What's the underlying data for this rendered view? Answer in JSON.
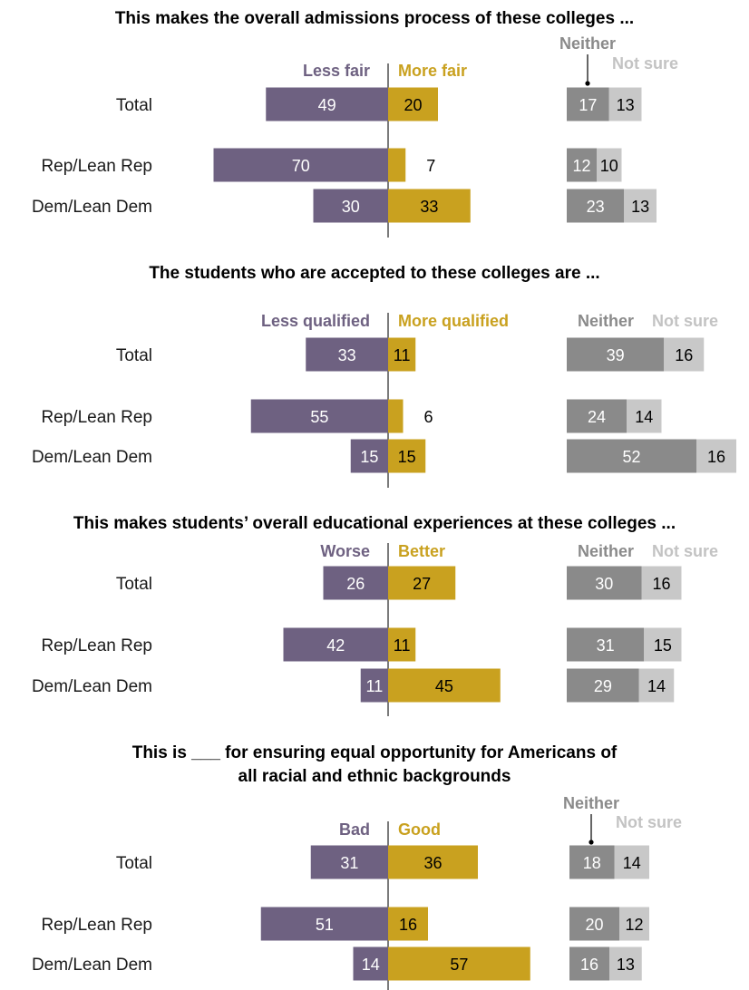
{
  "colors": {
    "left": "#6e6181",
    "right": "#c9a11f",
    "neither": "#8a8a8a",
    "not_sure": "#c8c8c8",
    "neither_head": "#8a8a8a",
    "not_sure_head": "#c3c3c3"
  },
  "chart_data": [
    {
      "type": "bar",
      "title": "This makes the overall admissions process of these colleges ...",
      "categories": [
        "Total",
        "Rep/Lean Rep",
        "Dem/Lean Dem"
      ],
      "left_label": "Less fair",
      "right_label": "More fair",
      "neither_label": "Neither",
      "not_sure_label": "Not sure",
      "series": [
        {
          "name": "Less fair",
          "values": [
            49,
            70,
            30
          ]
        },
        {
          "name": "More fair",
          "values": [
            20,
            7,
            33
          ]
        },
        {
          "name": "Neither",
          "values": [
            17,
            12,
            23
          ]
        },
        {
          "name": "Not sure",
          "values": [
            13,
            10,
            13
          ]
        }
      ]
    },
    {
      "type": "bar",
      "title": "The students who are accepted to these colleges are ...",
      "categories": [
        "Total",
        "Rep/Lean Rep",
        "Dem/Lean Dem"
      ],
      "left_label": "Less qualified",
      "right_label": "More qualified",
      "neither_label": "Neither",
      "not_sure_label": "Not sure",
      "series": [
        {
          "name": "Less qualified",
          "values": [
            33,
            55,
            15
          ]
        },
        {
          "name": "More qualified",
          "values": [
            11,
            6,
            15
          ]
        },
        {
          "name": "Neither",
          "values": [
            39,
            24,
            52
          ]
        },
        {
          "name": "Not sure",
          "values": [
            16,
            14,
            16
          ]
        }
      ]
    },
    {
      "type": "bar",
      "title": "This makes students’ overall educational experiences at these colleges ...",
      "categories": [
        "Total",
        "Rep/Lean Rep",
        "Dem/Lean Dem"
      ],
      "left_label": "Worse",
      "right_label": "Better",
      "neither_label": "Neither",
      "not_sure_label": "Not sure",
      "series": [
        {
          "name": "Worse",
          "values": [
            26,
            42,
            11
          ]
        },
        {
          "name": "Better",
          "values": [
            27,
            11,
            45
          ]
        },
        {
          "name": "Neither",
          "values": [
            30,
            31,
            29
          ]
        },
        {
          "name": "Not sure",
          "values": [
            16,
            15,
            14
          ]
        }
      ]
    },
    {
      "type": "bar",
      "title": [
        "This is ___ for ensuring equal opportunity for Americans of",
        "all racial and ethnic backgrounds"
      ],
      "categories": [
        "Total",
        "Rep/Lean Rep",
        "Dem/Lean Dem"
      ],
      "left_label": "Bad",
      "right_label": "Good",
      "neither_label": "Neither",
      "not_sure_label": "Not sure",
      "series": [
        {
          "name": "Bad",
          "values": [
            31,
            51,
            14
          ]
        },
        {
          "name": "Good",
          "values": [
            36,
            16,
            57
          ]
        },
        {
          "name": "Neither",
          "values": [
            18,
            20,
            16
          ]
        },
        {
          "name": "Not sure",
          "values": [
            14,
            12,
            13
          ]
        }
      ]
    }
  ]
}
